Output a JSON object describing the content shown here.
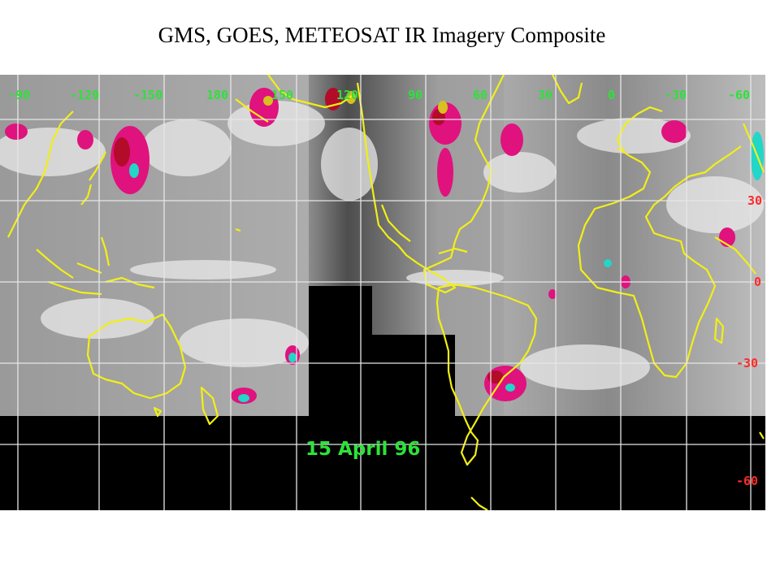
{
  "slide": {
    "title": "GMS, GOES, METEOSAT IR Imagery Composite"
  },
  "map": {
    "date_label": "15 April 96",
    "longitude_labels": [
      "-90",
      "-120",
      "-150",
      "180",
      "150",
      "120",
      "90",
      "60",
      "30",
      "0",
      "-30",
      "-60"
    ],
    "latitude_labels": [
      "30",
      "0",
      "-30",
      "-60"
    ],
    "colors": {
      "coastline": "#f2ef16",
      "grid": "#e6e6e6",
      "longitude_label": "#2de23a",
      "latitude_label": "#ff2a2a",
      "date_label": "#2de23a",
      "no_data": "#000000",
      "cold_cloud_magenta": "#e0127e",
      "cold_cloud_cyan": "#22d6c8"
    }
  }
}
